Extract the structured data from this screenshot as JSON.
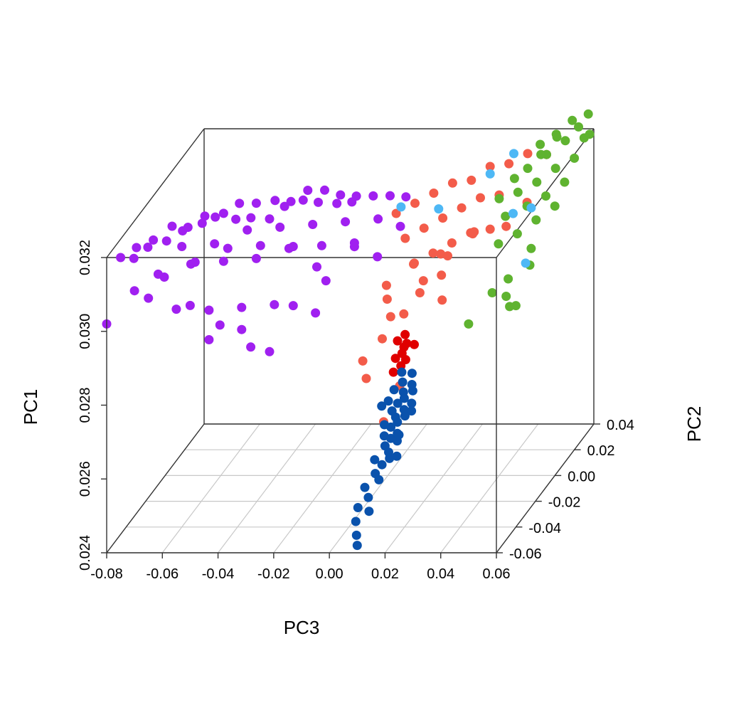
{
  "chart_data": {
    "type": "scatter",
    "projection": "3d-box",
    "grid": "floor",
    "axes": {
      "x": {
        "label": "PC3",
        "range": [
          -0.08,
          0.06
        ],
        "ticks": [
          "-0.08",
          "-0.06",
          "-0.04",
          "-0.02",
          "0.00",
          "0.02",
          "0.04",
          "0.06"
        ]
      },
      "y": {
        "label": "PC2",
        "range": [
          -0.06,
          0.04
        ],
        "ticks": [
          "-0.06",
          "-0.04",
          "-0.02",
          "0.00",
          "0.02",
          "0.04"
        ]
      },
      "z": {
        "label": "PC1",
        "range": [
          0.024,
          0.032
        ],
        "ticks": [
          "0.024",
          "0.026",
          "0.028",
          "0.030",
          "0.032"
        ]
      }
    },
    "series": [
      {
        "color": "#A020F0",
        "x": [
          -0.075,
          -0.07,
          -0.065,
          -0.06,
          -0.055,
          -0.05,
          -0.045,
          -0.04,
          -0.035,
          -0.03,
          -0.025,
          -0.02,
          -0.015,
          -0.01,
          -0.005,
          0.0,
          0.005,
          0.01,
          -0.072,
          -0.068,
          -0.062,
          -0.058,
          -0.052,
          -0.048,
          -0.042,
          -0.038,
          -0.032,
          -0.028,
          -0.022,
          -0.018,
          -0.012,
          -0.008,
          -0.06,
          -0.05,
          -0.04,
          -0.03,
          -0.02,
          -0.01,
          0.0,
          -0.065,
          -0.055,
          -0.045,
          -0.035,
          -0.025,
          -0.015,
          -0.005,
          -0.055,
          -0.045,
          -0.035,
          -0.025,
          -0.045,
          -0.035,
          -0.02,
          -0.01,
          0.005,
          -0.07,
          -0.06,
          -0.05,
          -0.04,
          -0.03,
          -0.02,
          -0.015,
          -0.005,
          0.008,
          -0.03,
          -0.025,
          -0.012,
          -0.04,
          -0.05,
          -0.08,
          -0.065
        ],
        "y": [
          -0.06,
          -0.058,
          -0.055,
          -0.05,
          -0.048,
          -0.045,
          -0.04,
          -0.038,
          -0.035,
          -0.03,
          -0.028,
          -0.025,
          -0.022,
          -0.02,
          -0.018,
          -0.015,
          -0.012,
          -0.01,
          -0.055,
          -0.052,
          -0.05,
          -0.045,
          -0.042,
          -0.04,
          -0.036,
          -0.032,
          -0.03,
          -0.026,
          -0.024,
          -0.02,
          -0.018,
          -0.014,
          -0.04,
          -0.035,
          -0.03,
          -0.025,
          -0.02,
          -0.015,
          -0.01,
          -0.05,
          -0.045,
          -0.04,
          -0.035,
          -0.03,
          -0.025,
          -0.02,
          -0.06,
          -0.055,
          -0.05,
          -0.045,
          -0.055,
          -0.05,
          -0.04,
          -0.035,
          -0.025,
          -0.06,
          -0.058,
          -0.055,
          -0.05,
          -0.045,
          -0.04,
          -0.03,
          -0.02,
          -0.01,
          -0.055,
          -0.05,
          -0.04,
          -0.058,
          -0.06,
          -0.06,
          -0.06
        ],
        "z": [
          0.032,
          0.0322,
          0.0323,
          0.0325,
          0.0324,
          0.0326,
          0.0325,
          0.0327,
          0.0326,
          0.0325,
          0.0324,
          0.0326,
          0.0325,
          0.0323,
          0.0322,
          0.0321,
          0.032,
          0.0319,
          0.0318,
          0.032,
          0.0321,
          0.0322,
          0.0323,
          0.0324,
          0.0322,
          0.0321,
          0.032,
          0.0322,
          0.0323,
          0.0321,
          0.032,
          0.0319,
          0.0316,
          0.0315,
          0.0317,
          0.0316,
          0.0315,
          0.0314,
          0.0313,
          0.0312,
          0.0313,
          0.0312,
          0.0311,
          0.0312,
          0.0311,
          0.031,
          0.0306,
          0.0304,
          0.0303,
          0.0302,
          0.0296,
          0.0297,
          0.03,
          0.0305,
          0.0308,
          0.0311,
          0.0314,
          0.0317,
          0.0319,
          0.0318,
          0.0316,
          0.0307,
          0.0309,
          0.0311,
          0.0294,
          0.0291,
          0.0298,
          0.0301,
          0.0307,
          0.0302,
          0.0309
        ]
      },
      {
        "color": "#F35C4A",
        "x": [
          0.01,
          0.015,
          0.02,
          0.025,
          0.03,
          0.035,
          0.04,
          0.045,
          0.05,
          0.015,
          0.02,
          0.025,
          0.03,
          0.035,
          0.04,
          0.02,
          0.025,
          0.03,
          0.035,
          0.01,
          0.012,
          0.015,
          0.018,
          0.022,
          0.028,
          0.005,
          0.008,
          0.025,
          0.032,
          0.038,
          0.042,
          0.046,
          0.05,
          0.018,
          0.026,
          0.034,
          0.012,
          0.016,
          0.02,
          0.03
        ],
        "y": [
          -0.02,
          -0.015,
          -0.01,
          -0.005,
          0.0,
          0.005,
          0.01,
          0.015,
          0.02,
          -0.025,
          -0.02,
          -0.015,
          -0.01,
          -0.005,
          0.0,
          -0.03,
          -0.025,
          -0.02,
          -0.015,
          -0.03,
          -0.035,
          -0.04,
          -0.035,
          -0.03,
          -0.025,
          -0.04,
          -0.045,
          -0.035,
          -0.03,
          -0.02,
          -0.015,
          -0.01,
          0.0,
          -0.025,
          -0.02,
          -0.01,
          -0.04,
          -0.05,
          -0.045,
          -0.03
        ],
        "z": [
          0.0318,
          0.0319,
          0.032,
          0.0321,
          0.032,
          0.0322,
          0.0321,
          0.0322,
          0.032,
          0.0313,
          0.0314,
          0.0315,
          0.0316,
          0.0317,
          0.0316,
          0.0308,
          0.0309,
          0.031,
          0.0311,
          0.0302,
          0.03,
          0.0297,
          0.0296,
          0.03,
          0.0303,
          0.0285,
          0.0282,
          0.0305,
          0.031,
          0.0313,
          0.0312,
          0.0311,
          0.0314,
          0.0306,
          0.0307,
          0.0309,
          0.0291,
          0.0272,
          0.028,
          0.0298
        ]
      },
      {
        "color": "#5FB330",
        "x": [
          0.045,
          0.05,
          0.055,
          0.06,
          0.05,
          0.055,
          0.06,
          0.045,
          0.05,
          0.055,
          0.06,
          0.052,
          0.058,
          0.048,
          0.042,
          0.055,
          0.06,
          0.05,
          0.045,
          0.055,
          0.058,
          0.052,
          0.048,
          0.056,
          0.06,
          0.05,
          0.054,
          0.046,
          0.058,
          0.062,
          0.04,
          0.044,
          0.06,
          0.05
        ],
        "y": [
          0.015,
          0.02,
          0.025,
          0.03,
          0.01,
          0.015,
          0.02,
          0.005,
          0.0,
          0.005,
          0.01,
          0.025,
          0.03,
          0.02,
          0.01,
          -0.005,
          0.0,
          -0.01,
          -0.015,
          -0.01,
          -0.02,
          -0.025,
          -0.03,
          -0.035,
          -0.04,
          0.03,
          0.035,
          0.025,
          0.04,
          0.03,
          0.0,
          -0.005,
          -0.05,
          -0.06
        ],
        "z": [
          0.0318,
          0.032,
          0.0322,
          0.0321,
          0.0316,
          0.0318,
          0.0319,
          0.0315,
          0.0313,
          0.0314,
          0.0316,
          0.0323,
          0.0324,
          0.032,
          0.0317,
          0.0311,
          0.0313,
          0.0309,
          0.0308,
          0.0305,
          0.0304,
          0.0302,
          0.03,
          0.0298,
          0.03,
          0.0322,
          0.0324,
          0.0321,
          0.0324,
          0.0322,
          0.0315,
          0.0312,
          0.0306,
          0.0302
        ]
      },
      {
        "color": "#4EB8F5",
        "x": [
          0.035,
          0.04,
          0.01,
          0.02,
          0.045,
          0.055,
          0.06
        ],
        "y": [
          0.005,
          0.015,
          -0.015,
          -0.005,
          0.0,
          -0.01,
          -0.03
        ],
        "z": [
          0.032,
          0.0322,
          0.0318,
          0.0314,
          0.0311,
          0.0316,
          0.0308
        ]
      },
      {
        "color": "#E00000",
        "x": [
          0.0,
          0.002,
          0.004,
          0.006,
          0.001,
          0.003,
          0.005,
          0.002,
          0.004,
          0.003
        ],
        "y": [
          0.01,
          0.012,
          0.008,
          0.01,
          0.005,
          0.006,
          0.004,
          0.0,
          0.002,
          0.008
        ],
        "z": [
          0.0273,
          0.0274,
          0.0273,
          0.0272,
          0.027,
          0.0271,
          0.027,
          0.0268,
          0.0269,
          0.0272
        ]
      },
      {
        "color": "#0A52AC",
        "x": [
          0.005,
          0.006,
          0.008,
          0.004,
          0.007,
          0.009,
          0.003,
          0.006,
          0.008,
          0.01,
          0.005,
          0.007,
          0.009,
          0.011,
          0.004,
          0.006,
          0.008,
          0.01,
          0.012,
          0.005,
          0.007,
          0.009,
          0.006,
          0.008,
          0.01,
          0.004,
          0.007,
          0.009,
          0.006,
          0.008,
          0.002,
          0.011,
          0.004,
          0.013,
          0.007,
          0.005,
          0.009,
          0.006,
          0.008,
          0.01
        ],
        "y": [
          0.0,
          -0.002,
          0.002,
          -0.005,
          -0.004,
          -0.001,
          -0.008,
          -0.007,
          -0.006,
          -0.003,
          -0.01,
          -0.012,
          -0.009,
          -0.007,
          -0.015,
          -0.014,
          -0.013,
          -0.011,
          -0.01,
          -0.018,
          -0.017,
          -0.016,
          -0.02,
          -0.022,
          -0.019,
          -0.025,
          -0.026,
          -0.024,
          -0.03,
          -0.032,
          -0.012,
          -0.02,
          -0.035,
          -0.028,
          -0.04,
          -0.045,
          -0.045,
          -0.05,
          -0.055,
          -0.06
        ],
        "z": [
          0.0268,
          0.0266,
          0.0267,
          0.0265,
          0.0264,
          0.0265,
          0.0263,
          0.0262,
          0.0263,
          0.0264,
          0.0261,
          0.026,
          0.0261,
          0.0262,
          0.0259,
          0.0258,
          0.0259,
          0.026,
          0.0261,
          0.0257,
          0.0256,
          0.0257,
          0.0255,
          0.0254,
          0.0256,
          0.0253,
          0.0252,
          0.0253,
          0.0251,
          0.025,
          0.0263,
          0.0258,
          0.0249,
          0.0255,
          0.0248,
          0.0247,
          0.0246,
          0.0245,
          0.0243,
          0.0242
        ]
      }
    ]
  }
}
